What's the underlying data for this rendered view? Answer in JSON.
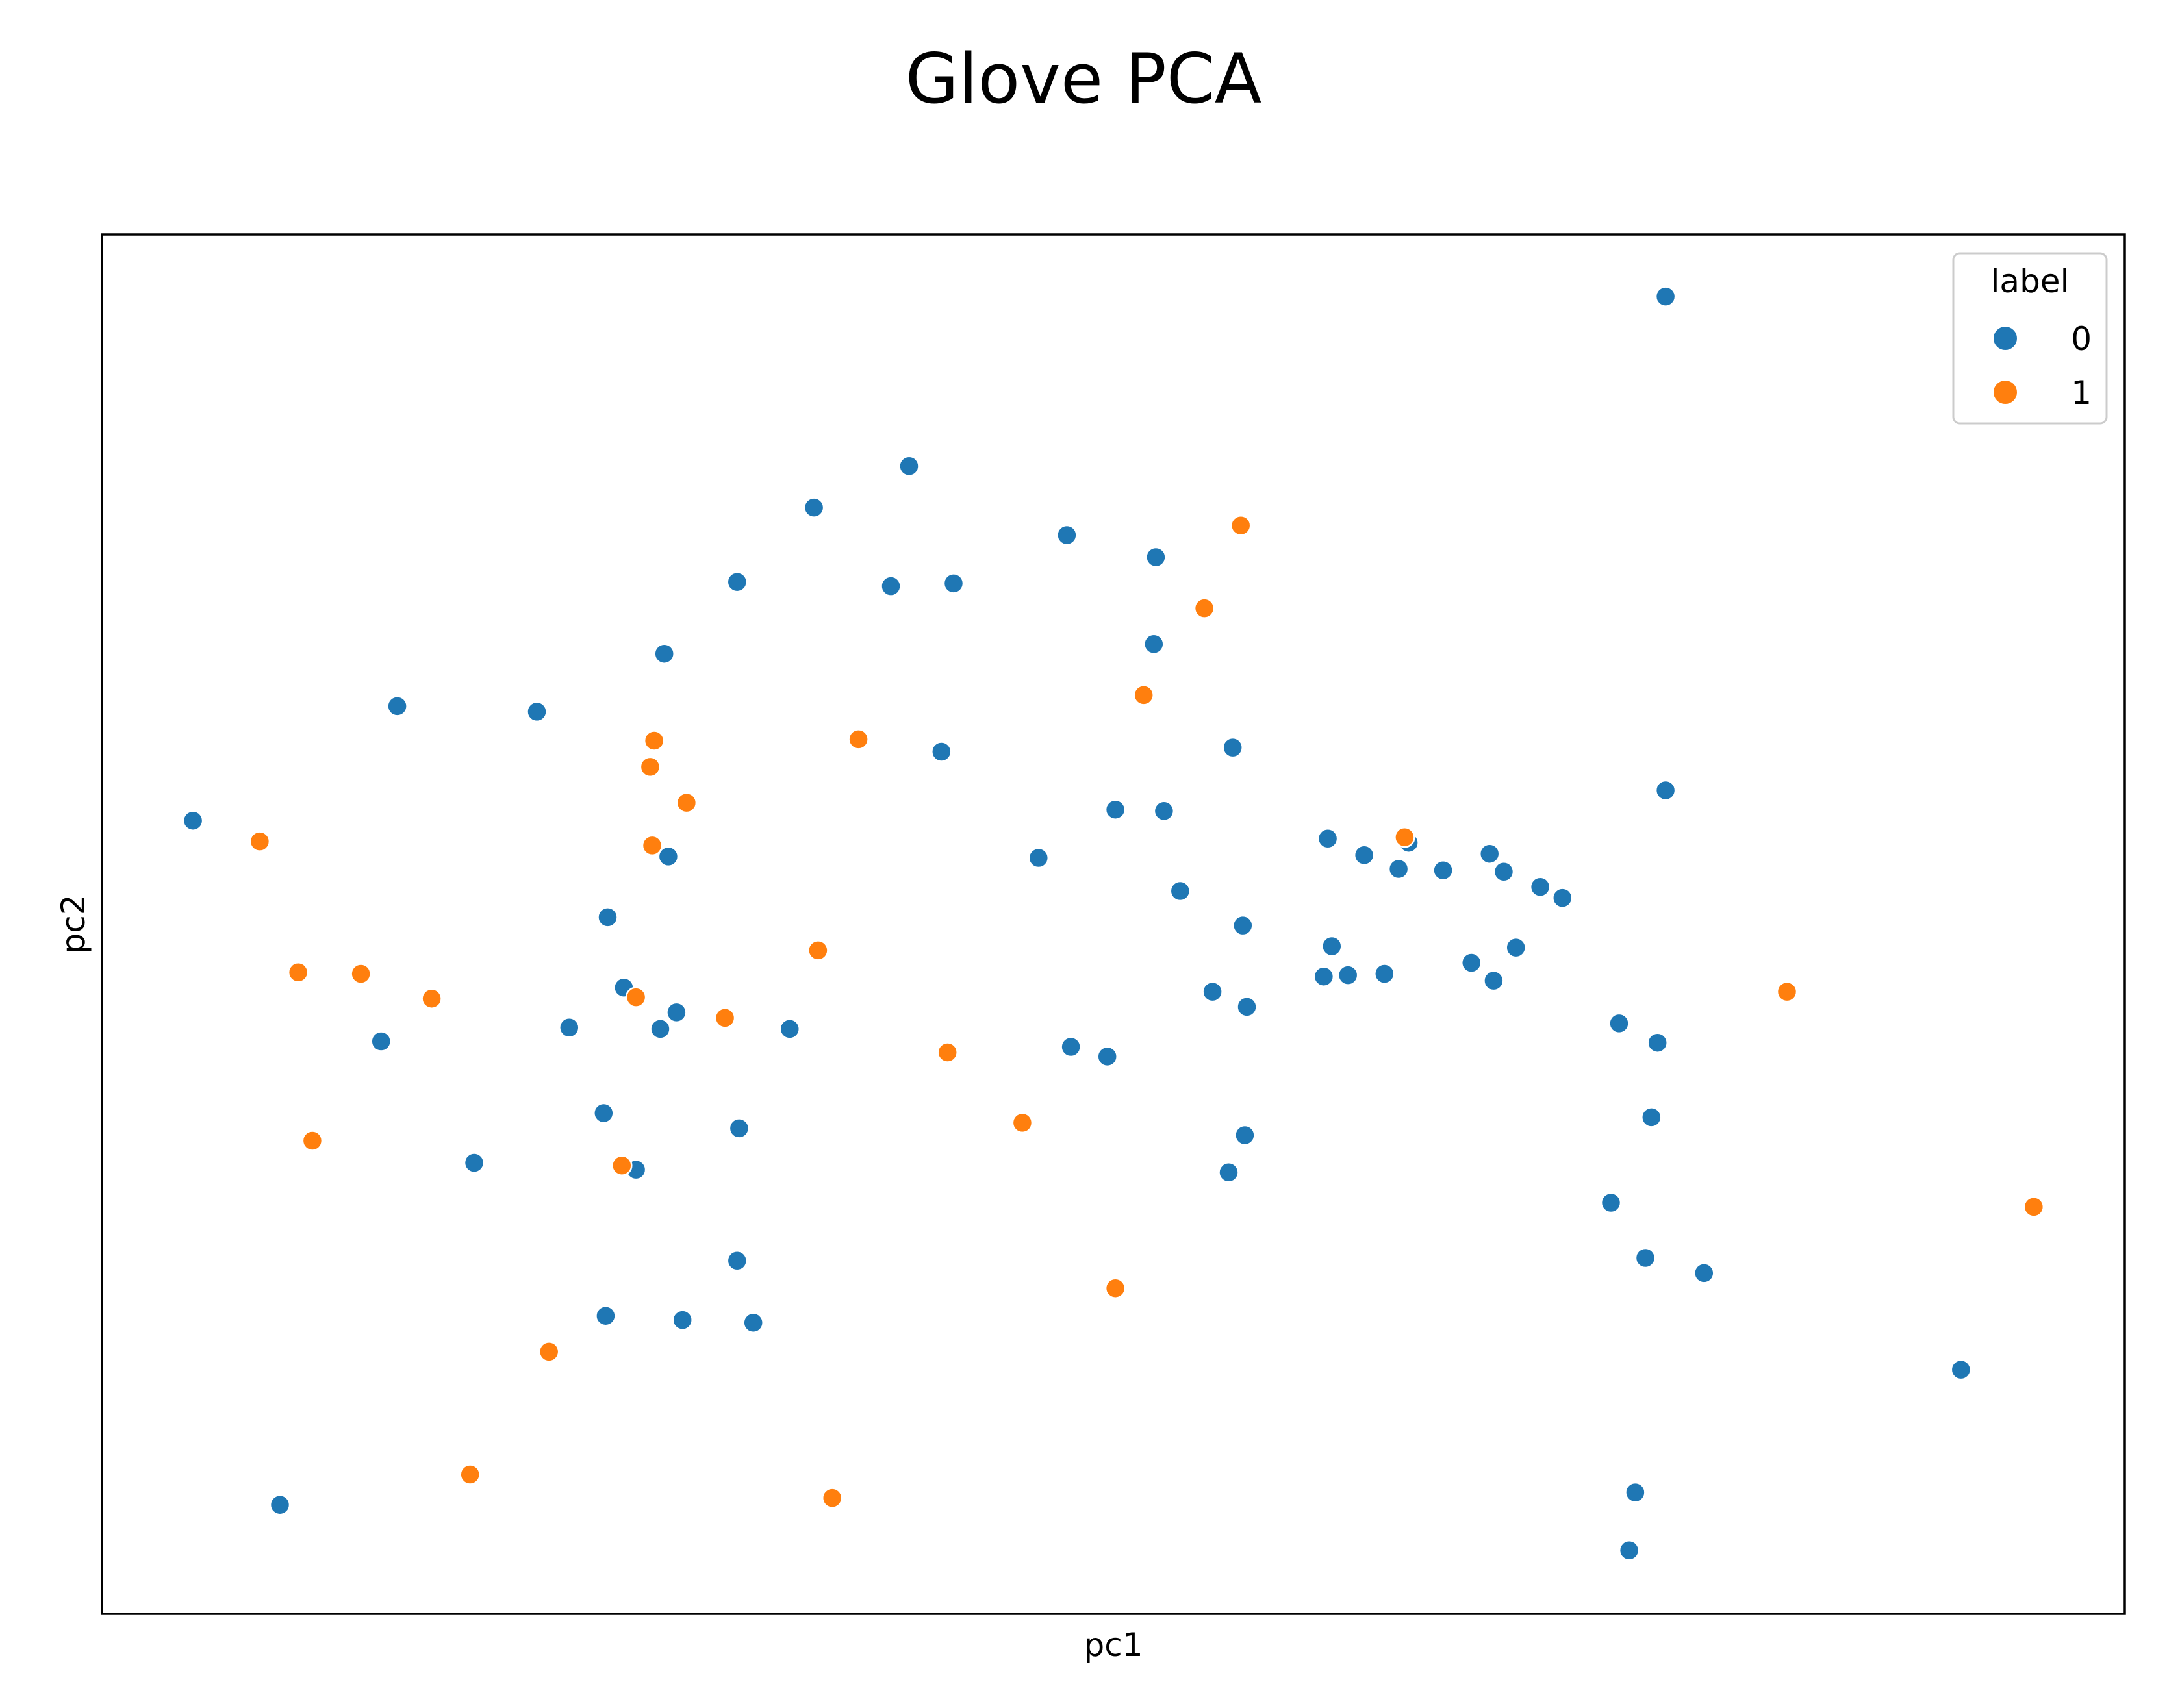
{
  "chart_data": {
    "type": "scatter",
    "title": "Glove PCA",
    "xlabel": "pc1",
    "ylabel": "pc2",
    "xlim": [
      0,
      1000
    ],
    "ylim": [
      0,
      1000
    ],
    "xticks": "none",
    "yticks": "none",
    "grid": false,
    "legend": {
      "title": "label",
      "placement": "top-right",
      "entries": [
        "0",
        "1"
      ]
    },
    "colors": {
      "0": "#1f77b4",
      "1": "#ff7f0e"
    },
    "series": [
      {
        "name": "0",
        "points": [
          [
            773,
            955
          ],
          [
            773,
            597
          ],
          [
            399,
            832
          ],
          [
            352,
            802
          ],
          [
            421,
            747
          ],
          [
            477,
            782
          ],
          [
            521,
            766
          ],
          [
            390,
            745
          ],
          [
            314,
            748
          ],
          [
            278,
            696
          ],
          [
            215,
            654
          ],
          [
            146,
            658
          ],
          [
            45,
            575
          ],
          [
            520,
            703
          ],
          [
            559,
            628
          ],
          [
            463,
            548
          ],
          [
            415,
            625
          ],
          [
            280,
            549
          ],
          [
            501,
            583
          ],
          [
            525,
            582
          ],
          [
            533,
            524
          ],
          [
            606,
            562
          ],
          [
            624,
            550
          ],
          [
            641,
            540
          ],
          [
            646,
            559
          ],
          [
            663,
            539
          ],
          [
            686,
            551
          ],
          [
            693,
            538
          ],
          [
            711,
            527
          ],
          [
            722,
            519
          ],
          [
            250,
            505
          ],
          [
            258,
            454
          ],
          [
            276,
            424
          ],
          [
            340,
            424
          ],
          [
            231,
            425
          ],
          [
            284,
            436
          ],
          [
            564,
            499
          ],
          [
            608,
            484
          ],
          [
            604,
            462
          ],
          [
            634,
            464
          ],
          [
            616,
            463
          ],
          [
            677,
            472
          ],
          [
            688,
            459
          ],
          [
            699,
            483
          ],
          [
            549,
            451
          ],
          [
            566,
            440
          ],
          [
            479,
            411
          ],
          [
            497,
            404
          ],
          [
            750,
            428
          ],
          [
            769,
            414
          ],
          [
            138,
            415
          ],
          [
            184,
            327
          ],
          [
            315,
            352
          ],
          [
            248,
            363
          ],
          [
            264,
            322
          ],
          [
            565,
            347
          ],
          [
            557,
            320
          ],
          [
            766,
            360
          ],
          [
            746,
            298
          ],
          [
            763,
            258
          ],
          [
            792,
            247
          ],
          [
            919,
            177
          ],
          [
            314,
            256
          ],
          [
            249,
            216
          ],
          [
            287,
            213
          ],
          [
            322,
            211
          ],
          [
            88,
            79
          ],
          [
            758,
            88
          ],
          [
            755,
            46
          ]
        ]
      },
      {
        "name": "1",
        "points": [
          [
            563,
            789
          ],
          [
            545,
            729
          ],
          [
            515,
            666
          ],
          [
            273,
            633
          ],
          [
            271,
            614
          ],
          [
            289,
            588
          ],
          [
            374,
            634
          ],
          [
            272,
            557
          ],
          [
            78,
            560
          ],
          [
            644,
            563
          ],
          [
            97,
            465
          ],
          [
            128,
            464
          ],
          [
            163,
            446
          ],
          [
            264,
            447
          ],
          [
            308,
            432
          ],
          [
            354,
            481
          ],
          [
            418,
            407
          ],
          [
            455,
            356
          ],
          [
            833,
            451
          ],
          [
            104,
            343
          ],
          [
            257,
            325
          ],
          [
            501,
            236
          ],
          [
            221,
            190
          ],
          [
            182,
            101
          ],
          [
            361,
            84
          ],
          [
            955,
            295
          ]
        ]
      }
    ]
  }
}
